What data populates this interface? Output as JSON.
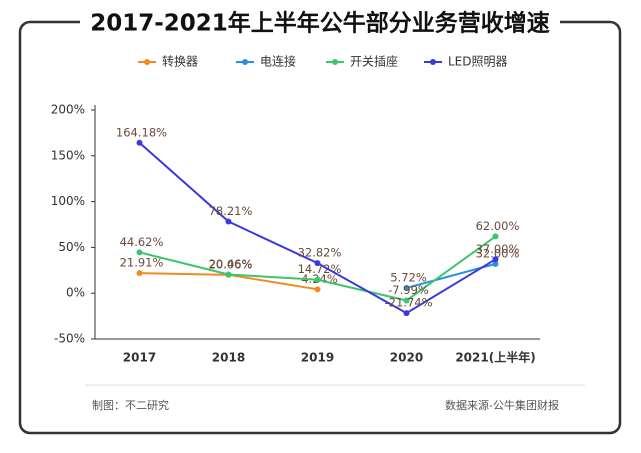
{
  "chart_data": {
    "type": "line",
    "title": "2017-2021年上半年公牛部分业务营收增速",
    "categories": [
      "2017",
      "2018",
      "2019",
      "2020",
      "2021(上半年)"
    ],
    "series": [
      {
        "name": "转换器",
        "color": "#f08a24",
        "values": [
          21.91,
          20.06,
          4.24,
          null,
          null
        ],
        "value_labels": [
          "21.91%",
          "20.06%",
          "4.24%",
          null,
          null
        ]
      },
      {
        "name": "电连接",
        "color": "#2b8ee6",
        "values": [
          null,
          null,
          null,
          5.72,
          32.0
        ],
        "value_labels": [
          null,
          null,
          null,
          "5.72%",
          "32.00%"
        ]
      },
      {
        "name": "开关插座",
        "color": "#3cc56a",
        "values": [
          44.62,
          20.46,
          14.72,
          -7.99,
          62.0
        ],
        "value_labels": [
          "44.62%",
          "20.46%",
          "14.72%",
          "-7.99%",
          "62.00%"
        ]
      },
      {
        "name": "LED照明器",
        "color": "#3a3adb",
        "values": [
          164.18,
          78.21,
          32.82,
          -21.74,
          37.0
        ],
        "value_labels": [
          "164.18%",
          "78.21%",
          "32.82%",
          "-21.74%",
          "37.00%"
        ]
      }
    ],
    "ylim": [
      -50,
      200
    ],
    "yticks": [
      {
        "value": -50,
        "label": "-50%"
      },
      {
        "value": 0,
        "label": "0%"
      },
      {
        "value": 50,
        "label": "50%"
      },
      {
        "value": 100,
        "label": "100%"
      },
      {
        "value": 150,
        "label": "150%"
      },
      {
        "value": 200,
        "label": "200%"
      }
    ],
    "grid": false,
    "credit": "制图：不二研究",
    "source": "数据来源-公牛集团财报"
  }
}
